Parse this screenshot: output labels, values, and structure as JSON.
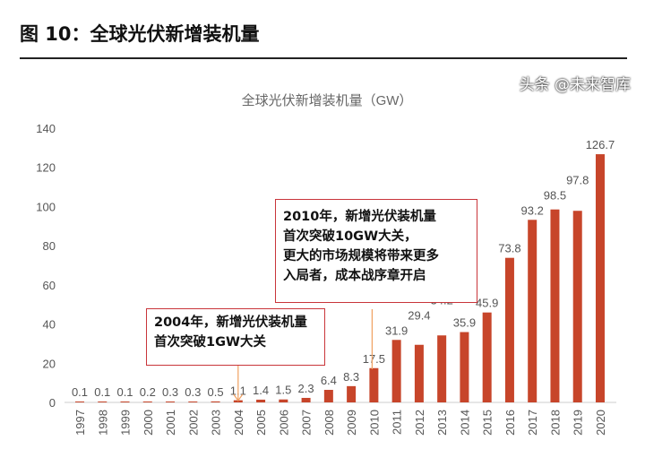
{
  "figure_title": "图 10：全球光伏新增装机量",
  "watermark": "头条 @未来智库",
  "chart_data": {
    "type": "bar",
    "title": "全球光伏新增装机量（GW）",
    "categories": [
      "1997",
      "1998",
      "1999",
      "2000",
      "2001",
      "2002",
      "2003",
      "2004",
      "2005",
      "2006",
      "2007",
      "2008",
      "2009",
      "2010",
      "2011",
      "2012",
      "2013",
      "2014",
      "2015",
      "2016",
      "2017",
      "2018",
      "2019",
      "2020"
    ],
    "values": [
      0.1,
      0.1,
      0.1,
      0.2,
      0.3,
      0.3,
      0.5,
      1.1,
      1.4,
      1.5,
      2.3,
      6.4,
      8.3,
      17.5,
      31.9,
      29.4,
      34.2,
      35.9,
      45.9,
      73.8,
      93.2,
      98.5,
      97.8,
      126.7
    ],
    "ylim": [
      0,
      140
    ],
    "yticks": [
      0,
      20,
      40,
      60,
      80,
      100,
      120,
      140
    ],
    "grid": false,
    "bar_color": "#c7452a",
    "annotations": [
      {
        "category": "2004",
        "lines": [
          "2004年，新增光伏装机量",
          "首次突破1GW大关"
        ]
      },
      {
        "category": "2010",
        "lines": [
          "2010年，新增光伏装机量",
          "首次突破10GW大关，",
          "更大的市场规模将带来更多",
          "入局者，成本战序章开启"
        ]
      }
    ]
  }
}
